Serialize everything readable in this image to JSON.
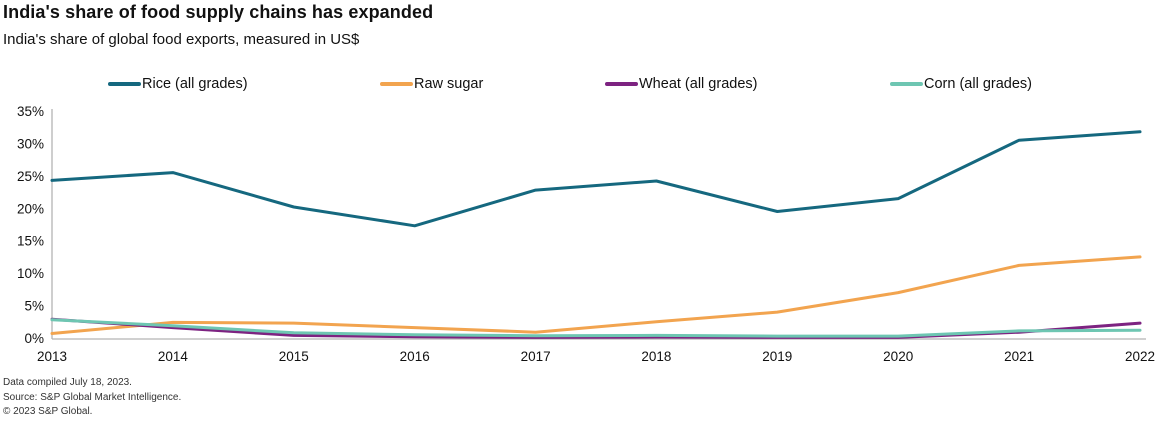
{
  "header": {
    "title": "India's share of food supply chains has expanded",
    "subtitle": "India's share of global food exports, measured in US$"
  },
  "chart_data": {
    "type": "line",
    "title": "India's share of food supply chains has expanded",
    "subtitle": "India's share of global food exports, measured in US$",
    "x": [
      2013,
      2014,
      2015,
      2016,
      2017,
      2018,
      2019,
      2020,
      2021,
      2022
    ],
    "series": [
      {
        "name": "Rice (all grades)",
        "color": "#15687f",
        "values": [
          24.3,
          25.5,
          20.2,
          17.3,
          22.8,
          24.2,
          19.5,
          21.5,
          30.5,
          31.8
        ]
      },
      {
        "name": "Raw sugar",
        "color": "#f2a44f",
        "values": [
          0.7,
          2.4,
          2.3,
          1.6,
          0.9,
          2.5,
          4.0,
          7.0,
          11.2,
          12.5
        ]
      },
      {
        "name": "Wheat (all grades)",
        "color": "#7d2381",
        "values": [
          2.9,
          1.6,
          0.4,
          0.2,
          0.1,
          0.15,
          0.1,
          0.1,
          0.9,
          2.3
        ]
      },
      {
        "name": "Corn (all grades)",
        "color": "#6ec6b2",
        "values": [
          2.8,
          1.9,
          0.8,
          0.5,
          0.35,
          0.4,
          0.3,
          0.3,
          1.1,
          1.2
        ]
      }
    ],
    "ylim": [
      0,
      35
    ],
    "yticks": [
      0,
      5,
      10,
      15,
      20,
      25,
      30,
      35
    ],
    "ytick_suffix": "%",
    "grid": false,
    "legend_position": "top",
    "axis_color": "#b3b3b3"
  },
  "footer": {
    "line1": "Data compiled July 18, 2023.",
    "line2": "Source: S&P Global Market Intelligence.",
    "line3": "© 2023 S&P Global."
  }
}
